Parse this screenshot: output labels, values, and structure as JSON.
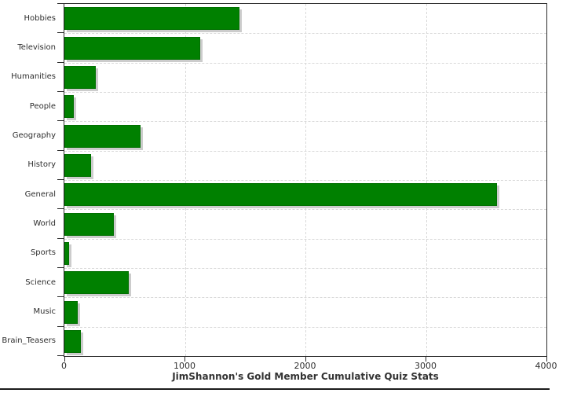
{
  "chart_data": {
    "type": "bar",
    "orientation": "horizontal",
    "title": "JimShannon's Gold Member Cumulative Quiz Stats",
    "categories": [
      "Hobbies",
      "Television",
      "Humanities",
      "People",
      "Geography",
      "History",
      "General",
      "World",
      "Sports",
      "Science",
      "Music",
      "Brain_Teasers"
    ],
    "values": [
      1450,
      1130,
      262,
      78,
      630,
      223,
      3590,
      410,
      38,
      537,
      110,
      135
    ],
    "xlabel": "",
    "ylabel": "",
    "xlim": [
      0,
      4000
    ],
    "x_ticks": [
      0,
      1000,
      2000,
      3000,
      4000
    ],
    "x_tick_labels": [
      "0",
      "1000",
      "2000",
      "3000",
      "4000"
    ],
    "grid": "dashed",
    "legend": "none",
    "bar_color": "#008000",
    "bar_shadow_color": "#cccccc",
    "gridline_color": "#d9d9d9",
    "axis_color": "#2b2b2b",
    "label_color": "#2e2e2e"
  }
}
